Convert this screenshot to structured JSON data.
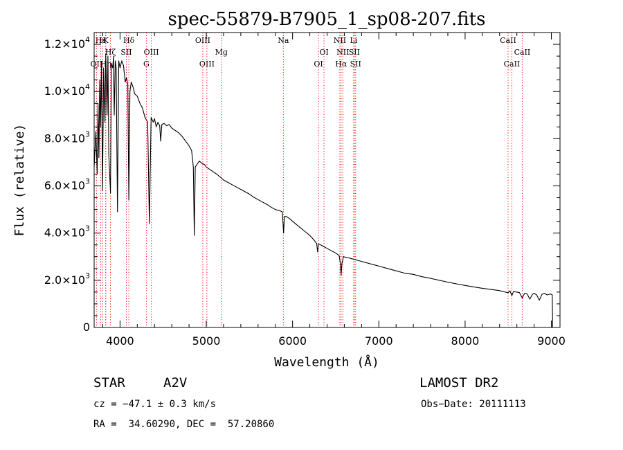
{
  "chart_data": {
    "type": "line",
    "title": "spec-55879-B7905_1_sp08-207.fits",
    "xlabel": "Wavelength (Å)",
    "ylabel": "Flux (relative)",
    "xlim": [
      3700,
      9100
    ],
    "ylim": [
      0,
      12500
    ],
    "x_ticks": [
      4000,
      5000,
      6000,
      7000,
      8000,
      9000
    ],
    "x_tick_labels": [
      "4000",
      "5000",
      "6000",
      "7000",
      "8000",
      "9000"
    ],
    "y_ticks": [
      0,
      2000,
      4000,
      6000,
      8000,
      10000,
      12000
    ],
    "y_tick_labels": [
      {
        "mant": "0",
        "exp": ""
      },
      {
        "mant": "2.0×10",
        "exp": "3"
      },
      {
        "mant": "4.0×10",
        "exp": "3"
      },
      {
        "mant": "6.0×10",
        "exp": "3"
      },
      {
        "mant": "8.0×10",
        "exp": "3"
      },
      {
        "mant": "1.0×10",
        "exp": "4"
      },
      {
        "mant": "1.2×10",
        "exp": "4"
      }
    ],
    "series": [
      {
        "line_color": "#000000",
        "points": [
          [
            3700,
            6800
          ],
          [
            3720,
            8300
          ],
          [
            3735,
            6500
          ],
          [
            3745,
            9500
          ],
          [
            3755,
            7200
          ],
          [
            3765,
            10500
          ],
          [
            3775,
            8500
          ],
          [
            3785,
            11200
          ],
          [
            3797,
            5800
          ],
          [
            3810,
            11000
          ],
          [
            3825,
            8700
          ],
          [
            3835,
            11600
          ],
          [
            3850,
            9000
          ],
          [
            3860,
            11500
          ],
          [
            3870,
            7300
          ],
          [
            3889,
            5700
          ],
          [
            3900,
            11200
          ],
          [
            3915,
            11000
          ],
          [
            3925,
            11500
          ],
          [
            3933,
            9000
          ],
          [
            3945,
            11300
          ],
          [
            3955,
            11000
          ],
          [
            3970,
            4900
          ],
          [
            3985,
            11300
          ],
          [
            4000,
            11000
          ],
          [
            4020,
            11300
          ],
          [
            4040,
            11100
          ],
          [
            4060,
            10400
          ],
          [
            4075,
            10600
          ],
          [
            4090,
            10300
          ],
          [
            4102,
            5400
          ],
          [
            4115,
            10000
          ],
          [
            4130,
            10400
          ],
          [
            4150,
            10200
          ],
          [
            4170,
            9900
          ],
          [
            4200,
            9800
          ],
          [
            4230,
            9500
          ],
          [
            4260,
            9300
          ],
          [
            4290,
            8900
          ],
          [
            4320,
            8700
          ],
          [
            4340,
            4400
          ],
          [
            4360,
            8900
          ],
          [
            4385,
            8700
          ],
          [
            4400,
            8850
          ],
          [
            4420,
            8500
          ],
          [
            4440,
            8700
          ],
          [
            4460,
            8550
          ],
          [
            4471,
            7900
          ],
          [
            4485,
            8600
          ],
          [
            4510,
            8650
          ],
          [
            4540,
            8550
          ],
          [
            4570,
            8600
          ],
          [
            4600,
            8450
          ],
          [
            4640,
            8350
          ],
          [
            4680,
            8250
          ],
          [
            4720,
            8100
          ],
          [
            4760,
            7900
          ],
          [
            4800,
            7700
          ],
          [
            4830,
            7500
          ],
          [
            4850,
            6800
          ],
          [
            4861,
            3900
          ],
          [
            4872,
            6800
          ],
          [
            4890,
            6900
          ],
          [
            4920,
            7050
          ],
          [
            4950,
            6950
          ],
          [
            4980,
            6900
          ],
          [
            5000,
            6800
          ],
          [
            5040,
            6700
          ],
          [
            5080,
            6600
          ],
          [
            5120,
            6500
          ],
          [
            5170,
            6350
          ],
          [
            5200,
            6250
          ],
          [
            5250,
            6150
          ],
          [
            5300,
            6050
          ],
          [
            5350,
            5950
          ],
          [
            5400,
            5850
          ],
          [
            5450,
            5750
          ],
          [
            5500,
            5650
          ],
          [
            5550,
            5520
          ],
          [
            5600,
            5420
          ],
          [
            5650,
            5320
          ],
          [
            5700,
            5220
          ],
          [
            5750,
            5100
          ],
          [
            5800,
            5000
          ],
          [
            5850,
            4950
          ],
          [
            5880,
            4900
          ],
          [
            5890,
            4400
          ],
          [
            5896,
            4000
          ],
          [
            5905,
            4700
          ],
          [
            5930,
            4700
          ],
          [
            5970,
            4600
          ],
          [
            6000,
            4500
          ],
          [
            6050,
            4350
          ],
          [
            6100,
            4200
          ],
          [
            6150,
            4050
          ],
          [
            6200,
            3900
          ],
          [
            6250,
            3700
          ],
          [
            6280,
            3550
          ],
          [
            6290,
            3200
          ],
          [
            6300,
            3550
          ],
          [
            6350,
            3450
          ],
          [
            6400,
            3350
          ],
          [
            6450,
            3250
          ],
          [
            6500,
            3150
          ],
          [
            6540,
            3050
          ],
          [
            6555,
            2700
          ],
          [
            6563,
            2200
          ],
          [
            6572,
            2700
          ],
          [
            6590,
            3000
          ],
          [
            6650,
            2950
          ],
          [
            6700,
            2900
          ],
          [
            6750,
            2850
          ],
          [
            6800,
            2800
          ],
          [
            6850,
            2750
          ],
          [
            6900,
            2700
          ],
          [
            6950,
            2650
          ],
          [
            7000,
            2600
          ],
          [
            7100,
            2500
          ],
          [
            7200,
            2400
          ],
          [
            7300,
            2300
          ],
          [
            7400,
            2250
          ],
          [
            7500,
            2150
          ],
          [
            7600,
            2080
          ],
          [
            7700,
            2000
          ],
          [
            7800,
            1920
          ],
          [
            7900,
            1850
          ],
          [
            8000,
            1780
          ],
          [
            8100,
            1720
          ],
          [
            8200,
            1660
          ],
          [
            8300,
            1610
          ],
          [
            8400,
            1560
          ],
          [
            8498,
            1470
          ],
          [
            8520,
            1550
          ],
          [
            8542,
            1350
          ],
          [
            8560,
            1520
          ],
          [
            8600,
            1500
          ],
          [
            8630,
            1480
          ],
          [
            8662,
            1250
          ],
          [
            8690,
            1450
          ],
          [
            8720,
            1420
          ],
          [
            8750,
            1200
          ],
          [
            8780,
            1400
          ],
          [
            8800,
            1450
          ],
          [
            8830,
            1380
          ],
          [
            8860,
            1150
          ],
          [
            8890,
            1400
          ],
          [
            8920,
            1450
          ],
          [
            8950,
            1380
          ],
          [
            8990,
            1420
          ],
          [
            9010,
            1380
          ],
          [
            9015,
            0
          ]
        ]
      }
    ],
    "line_marker_color": "#ff0000",
    "line_markers": [
      {
        "label": "Hε",
        "x": 3775,
        "row": 0
      },
      {
        "label": "H",
        "x": 3798,
        "row": 0
      },
      {
        "label": "K",
        "x": 3834,
        "row": 0
      },
      {
        "label": "Hδ",
        "x": 4102,
        "row": 0
      },
      {
        "label": "OII",
        "x": 3727,
        "row": 2
      },
      {
        "label": "Hη",
        "x": 3835,
        "row": 2
      },
      {
        "label": "Hζ",
        "x": 3889,
        "row": 1
      },
      {
        "label": "SII",
        "x": 4073,
        "row": 1
      },
      {
        "label": "OIII",
        "x": 4363,
        "row": 1
      },
      {
        "label": "G",
        "x": 4305,
        "row": 2
      },
      {
        "label": "OIII",
        "x": 4959,
        "row": 0
      },
      {
        "label": "OIII",
        "x": 5007,
        "row": 2
      },
      {
        "label": "Mg",
        "x": 5175,
        "row": 1
      },
      {
        "label": "Na",
        "x": 5893,
        "row": 0
      },
      {
        "label": "OI",
        "x": 6300,
        "row": 2
      },
      {
        "label": "OI",
        "x": 6364,
        "row": 1
      },
      {
        "label": "NII",
        "x": 6548,
        "row": 0
      },
      {
        "label": "Li",
        "x": 6708,
        "row": 0
      },
      {
        "label": "NII",
        "x": 6583,
        "row": 1
      },
      {
        "label": "SII",
        "x": 6716,
        "row": 1
      },
      {
        "label": "Hα",
        "x": 6563,
        "row": 2
      },
      {
        "label": "SII",
        "x": 6731,
        "row": 2
      },
      {
        "label": "CaII",
        "x": 8498,
        "row": 0
      },
      {
        "label": "CaII",
        "x": 8662,
        "row": 1
      },
      {
        "label": "CaII",
        "x": 8542,
        "row": 2
      }
    ],
    "grid": false,
    "legend": "none"
  },
  "info": {
    "object_type": "STAR",
    "spectral_class": "A2V",
    "survey": "LAMOST DR2",
    "cz": "cz = −47.1 ± 0.3 km/s",
    "obs_date": "Obs−Date: 20111113",
    "coords": "RA =  34.60290, DEC =  57.20860"
  }
}
